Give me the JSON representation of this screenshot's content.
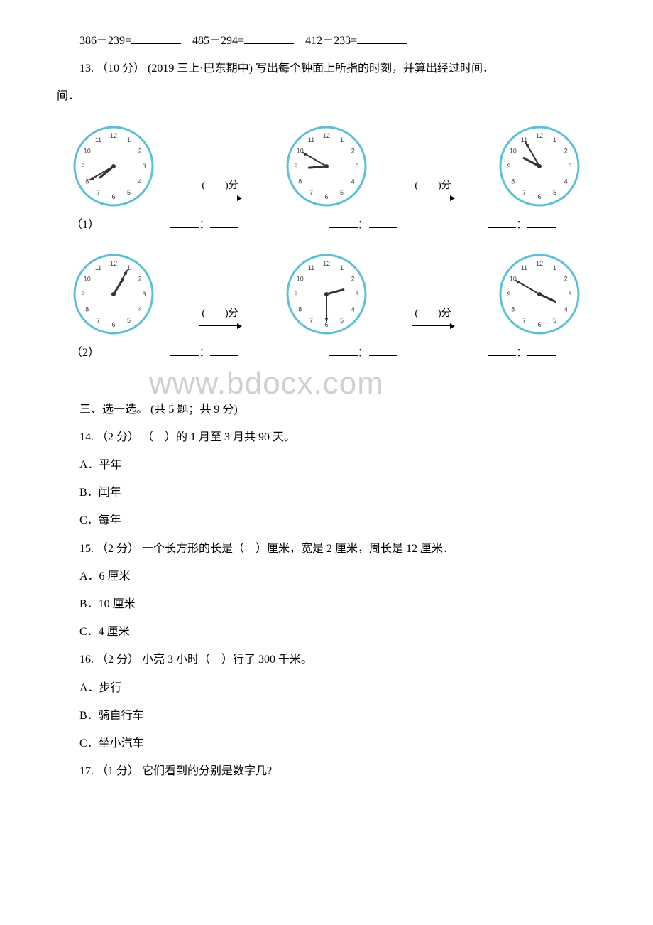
{
  "q12": {
    "eq1": "386－239=",
    "eq2": "485－294=",
    "eq3": "412－233="
  },
  "q13": {
    "number": "13.",
    "points": "（10 分）",
    "source": "(2019 三上·巴东期中)",
    "text": "写出每个钟面上所指的时刻，并算出经过时间．",
    "sub1": "（1）",
    "sub2": "（2）",
    "arrow_label": "(　　)分",
    "clocks_row1": [
      {
        "hour": 7,
        "minute": 40
      },
      {
        "hour": 8,
        "minute": 50
      },
      {
        "hour": 9,
        "minute": 55
      }
    ],
    "clocks_row2": [
      {
        "hour": 1,
        "minute": 5
      },
      {
        "hour": 2,
        "minute": 30
      },
      {
        "hour": 3,
        "minute": 50
      }
    ],
    "clock_style": {
      "face_fill": "#ffffff",
      "face_stroke": "#5bbfd6",
      "face_stroke_width": 3,
      "number_color": "#444444",
      "number_fontsize": 9,
      "hand_color": "#333333",
      "dot_color": "#333333",
      "radius": 55
    }
  },
  "section3": {
    "title": "三、选一选。",
    "subtitle": "(共 5 题；共 9 分)"
  },
  "q14": {
    "number": "14.",
    "points": "（2 分）",
    "text": "（　）的 1 月至 3 月共 90 天。",
    "options": {
      "A": "A．平年",
      "B": "B．闰年",
      "C": "C．每年"
    }
  },
  "q15": {
    "number": "15.",
    "points": "（2 分）",
    "text": "一个长方形的长是（　）厘米，宽是 2 厘米，周长是 12 厘米．",
    "options": {
      "A": "A．6 厘米",
      "B": "B．10 厘米",
      "C": "C．4 厘米"
    }
  },
  "q16": {
    "number": "16.",
    "points": "（2 分）",
    "text": "小亮 3 小时（　）行了 300 千米。",
    "options": {
      "A": "A．步行",
      "B": "B．骑自行车",
      "C": "C．坐小汽车"
    }
  },
  "q17": {
    "number": "17.",
    "points": "（1 分）",
    "text": "它们看到的分别是数字几?"
  },
  "watermark": "www.bdocx.com",
  "time_sep": "："
}
